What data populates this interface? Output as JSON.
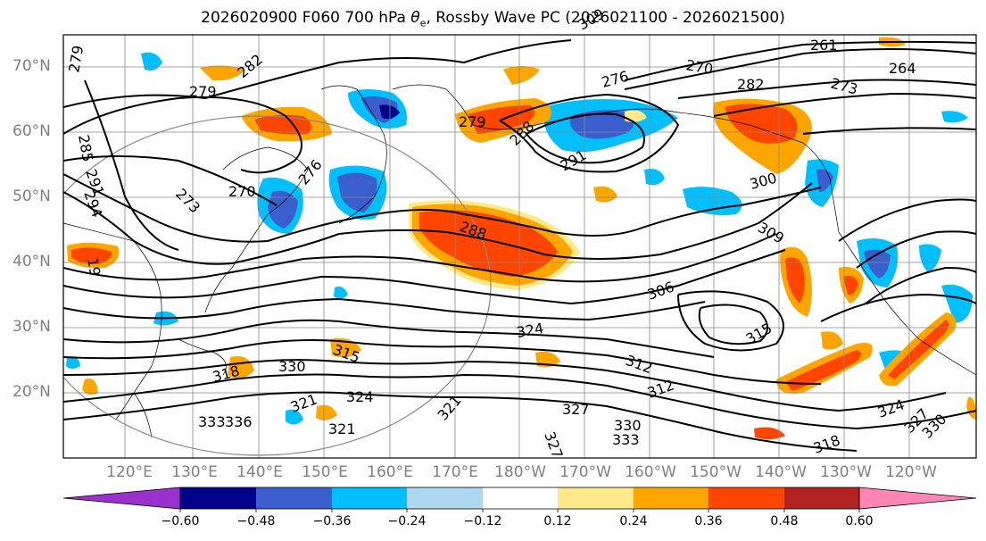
{
  "title_main": "2026020900 F060 700 hPa ",
  "title_symbol": "θ",
  "title_sub": "e",
  "title_rest": ", Rossby Wave PC (2026021100 - 2026021500)",
  "lat_labels": [
    "70°N",
    "60°N",
    "50°N",
    "40°N",
    "30°N",
    "20°N"
  ],
  "lon_labels": [
    "120°E",
    "130°E",
    "140°E",
    "150°E",
    "160°E",
    "170°E",
    "180°W",
    "170°W",
    "160°W",
    "150°W",
    "140°W",
    "130°W",
    "120°W"
  ],
  "contour_labels": [
    "279",
    "279",
    "282",
    "285",
    "291",
    "294",
    "273",
    "270",
    "276",
    "279",
    "288",
    "291",
    "276",
    "270",
    "261",
    "264",
    "273",
    "282",
    "300",
    "309",
    "288",
    "306",
    "309",
    "312",
    "315",
    "315",
    "318",
    "330",
    "321",
    "324",
    "327",
    "330",
    "333",
    "321",
    "327",
    "321",
    "324",
    "327",
    "318",
    "324",
    "330",
    "312",
    "333",
    "336",
    "19"
  ],
  "colorbar": {
    "ticks": [
      "−0.60",
      "−0.48",
      "−0.36",
      "−0.24",
      "−0.12",
      "0.12",
      "0.24",
      "0.36",
      "0.48",
      "0.60"
    ],
    "colors": [
      "#9932CC",
      "#00008B",
      "#3A5FCD",
      "#00BFFF",
      "#ADD8F0",
      "#FFFFFF",
      "#FFE98A",
      "#FFA500",
      "#FF4500",
      "#B22222",
      "#FF85B4"
    ]
  }
}
